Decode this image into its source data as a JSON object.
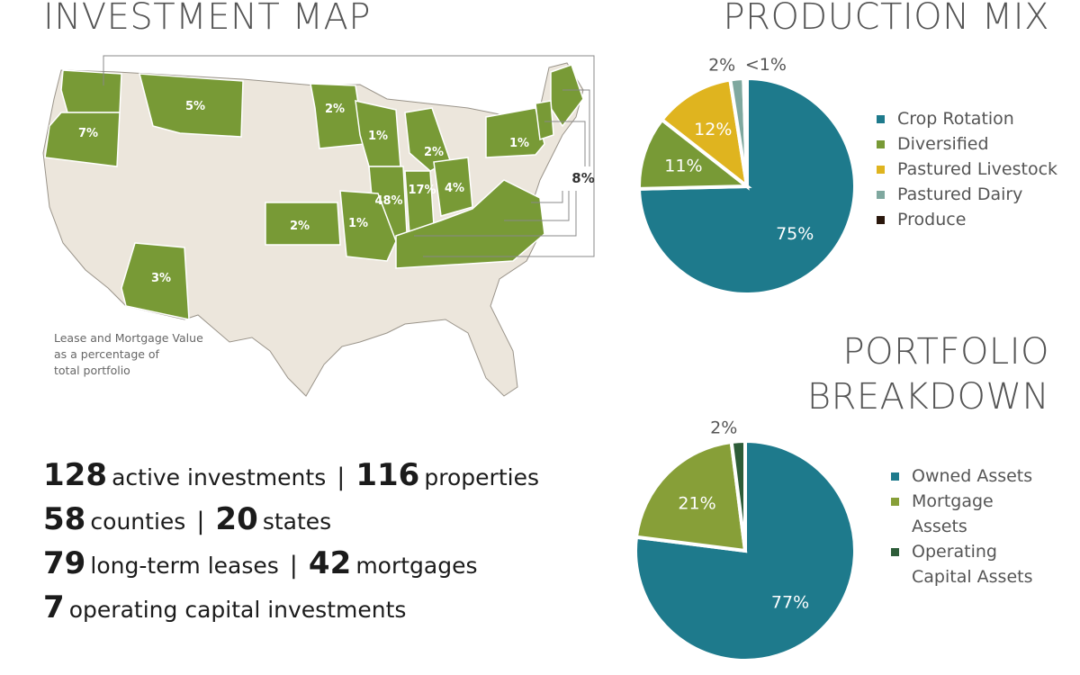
{
  "map": {
    "title": "INVESTMENT MAP",
    "labels": [
      "7%",
      "5%",
      "2%",
      "1%",
      "2%",
      "1%",
      "48%",
      "17%",
      "4%",
      "2%",
      "1%",
      "3%",
      "8%"
    ],
    "caption": "Lease and Mortgage Value as a percentage of total portfolio"
  },
  "stats": [
    [
      {
        "number": 128,
        "text": "active investments"
      },
      {
        "number": 116,
        "text": "properties"
      }
    ],
    [
      {
        "number": 58,
        "text": "counties"
      },
      {
        "number": 20,
        "text": "states"
      }
    ],
    [
      {
        "number": 79,
        "text": "long-term leases"
      },
      {
        "number": 42,
        "text": "mortgages"
      }
    ],
    [
      {
        "number": 7,
        "text": "operating capital investments"
      }
    ]
  ],
  "chart_data": [
    {
      "type": "pie",
      "title": "PRODUCTION MIX",
      "categories": [
        "Crop Rotation",
        "Diversified",
        "Pastured Livestock",
        "Pastured Dairy",
        "Produce"
      ],
      "values": [
        75,
        11,
        12,
        2,
        0.5
      ],
      "value_labels": [
        "75%",
        "11%",
        "12%",
        "2%",
        "<1%"
      ],
      "colors": [
        "#1e7a8c",
        "#789a36",
        "#dfb41f",
        "#7fa89f",
        "#2a170c"
      ]
    },
    {
      "type": "pie",
      "title": "PORTFOLIO BREAKDOWN",
      "categories": [
        "Owned Assets",
        "Mortgage Assets",
        "Operating Capital Assets"
      ],
      "values": [
        77,
        21,
        2
      ],
      "value_labels": [
        "77%",
        "21%",
        "2%"
      ],
      "colors": [
        "#1e7a8c",
        "#879f38",
        "#2d5c38"
      ]
    }
  ]
}
